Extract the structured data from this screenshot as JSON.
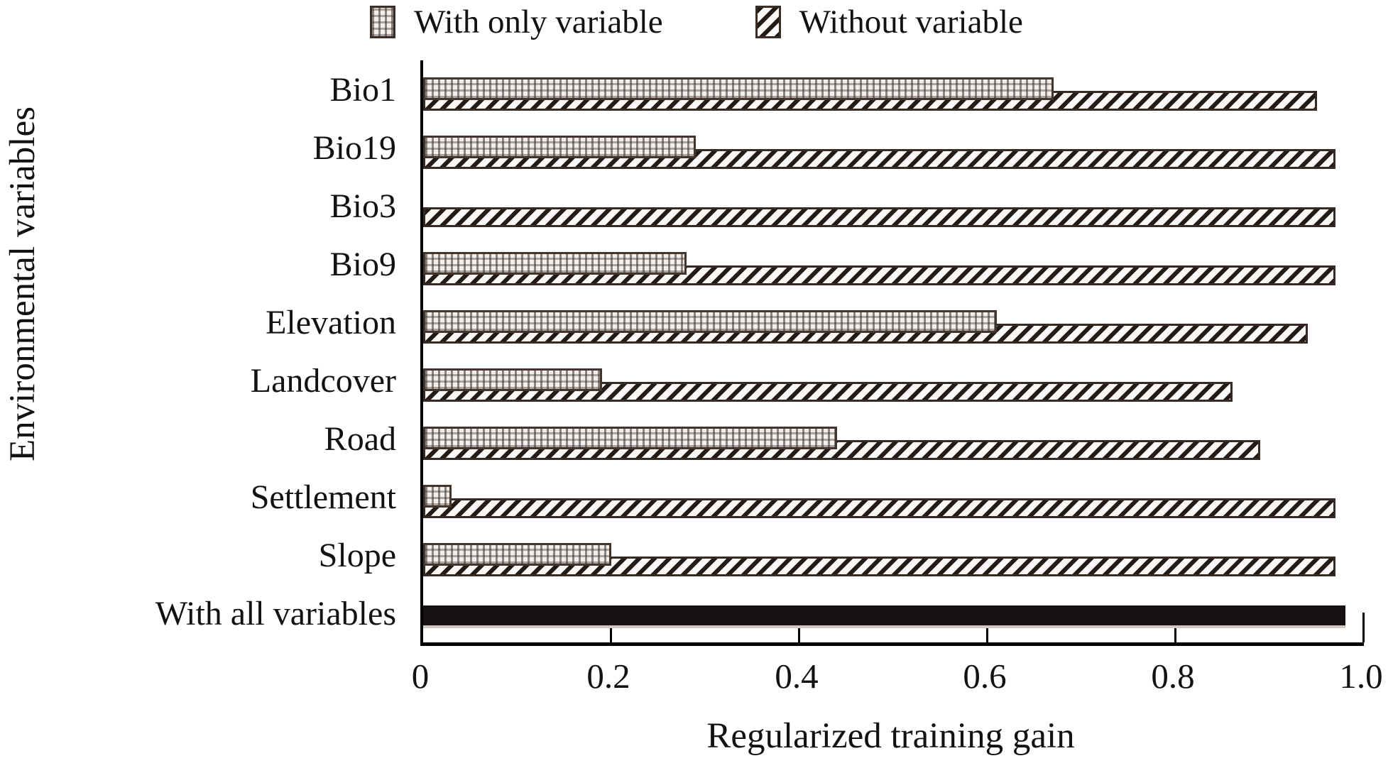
{
  "legend": {
    "items": [
      {
        "label": "With only variable",
        "swatch": "checkered"
      },
      {
        "label": "Without variable",
        "swatch": "diagonal-striped"
      }
    ]
  },
  "colors": {
    "axis": "#000000",
    "bar_border": "#3a2d26",
    "with_all_bar": "#171111",
    "text": "#121212"
  },
  "chart_data": {
    "type": "bar",
    "orientation": "horizontal",
    "title": "",
    "xlabel": "Regularized training gain",
    "ylabel": "Environmental variables",
    "xlim": [
      0,
      1.0
    ],
    "x_tick_values": [
      0,
      0.2,
      0.4,
      0.6,
      0.8,
      1.0
    ],
    "x_tick_labels": [
      "0",
      "0.2",
      "0.4",
      "0.6",
      "0.8",
      "1.0"
    ],
    "grid": false,
    "legend_position": "top",
    "categories": [
      "Bio1",
      "Bio19",
      "Bio3",
      "Bio9",
      "Elevation",
      "Landcover",
      "Road",
      "Settlement",
      "Slope",
      "With all variables"
    ],
    "series": [
      {
        "name": "With only variable",
        "values": [
          0.67,
          0.29,
          0.0,
          0.28,
          0.61,
          0.19,
          0.44,
          0.03,
          0.2,
          null
        ]
      },
      {
        "name": "Without variable",
        "values": [
          0.95,
          0.97,
          0.97,
          0.97,
          0.94,
          0.86,
          0.89,
          0.97,
          0.97,
          null
        ]
      },
      {
        "name": "With all variables",
        "values": [
          null,
          null,
          null,
          null,
          null,
          null,
          null,
          null,
          null,
          0.98
        ]
      }
    ]
  }
}
